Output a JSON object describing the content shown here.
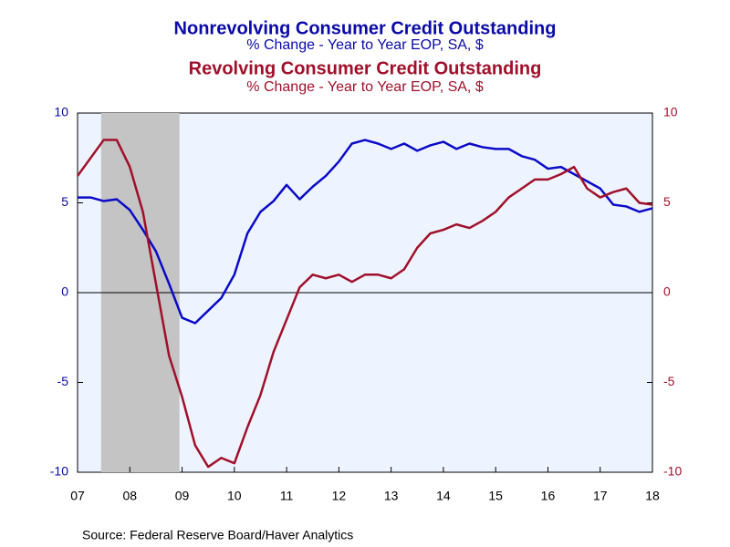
{
  "chart_data": {
    "type": "line",
    "titles": [
      {
        "text": "Nonrevolving Consumer Credit Outstanding",
        "color": "#0a0aa8"
      },
      {
        "text": "% Change - Year to Year     EOP, SA, $",
        "color": "#0a0aa8"
      },
      {
        "text": "Revolving Consumer Credit Outstanding",
        "color": "#a0102a"
      },
      {
        "text": "% Change - Year to Year     EOP, SA, $",
        "color": "#a0102a"
      }
    ],
    "source": "Source:  Federal Reserve Board/Haver Analytics",
    "x": [
      2007.0,
      2007.25,
      2007.5,
      2007.75,
      2008.0,
      2008.25,
      2008.5,
      2008.75,
      2009.0,
      2009.25,
      2009.5,
      2009.75,
      2010.0,
      2010.25,
      2010.5,
      2010.75,
      2011.0,
      2011.25,
      2011.5,
      2011.75,
      2012.0,
      2012.25,
      2012.5,
      2012.75,
      2013.0,
      2013.25,
      2013.5,
      2013.75,
      2014.0,
      2014.25,
      2014.5,
      2014.75,
      2015.0,
      2015.25,
      2015.5,
      2015.75,
      2016.0,
      2016.25,
      2016.5,
      2016.75,
      2017.0,
      2017.25,
      2017.5,
      2017.75,
      2018.0
    ],
    "series": [
      {
        "name": "Nonrevolving Consumer Credit Outstanding",
        "color": "#0a0ac8",
        "axis": "y",
        "values": [
          5.3,
          5.3,
          5.1,
          5.2,
          4.6,
          3.5,
          2.3,
          0.5,
          -1.4,
          -1.7,
          -1.0,
          -0.3,
          1.0,
          3.3,
          4.5,
          5.1,
          6.0,
          5.2,
          5.9,
          6.5,
          7.3,
          8.3,
          8.5,
          8.3,
          8.0,
          8.3,
          7.9,
          8.2,
          8.4,
          8.0,
          8.3,
          8.1,
          8.0,
          8.0,
          7.6,
          7.4,
          6.9,
          7.0,
          6.6,
          6.2,
          5.8,
          4.9,
          4.8,
          4.5,
          4.7
        ]
      },
      {
        "name": "Revolving Consumer Credit Outstanding",
        "color": "#a0102a",
        "axis": "y2",
        "values": [
          6.5,
          7.5,
          8.5,
          8.5,
          7.0,
          4.5,
          0.5,
          -3.5,
          -5.8,
          -8.5,
          -9.7,
          -9.2,
          -9.5,
          -7.5,
          -5.7,
          -3.3,
          -1.5,
          0.3,
          1.0,
          0.8,
          1.0,
          0.6,
          1.0,
          1.0,
          0.8,
          1.3,
          2.5,
          3.3,
          3.5,
          3.8,
          3.6,
          4.0,
          4.5,
          5.3,
          5.8,
          6.3,
          6.3,
          6.6,
          7.0,
          5.8,
          5.3,
          5.6,
          5.8,
          5.0,
          4.9
        ]
      }
    ],
    "recession": [
      2007.45,
      2008.95
    ],
    "xlim": [
      2007,
      2018
    ],
    "xticks": [
      {
        "value": 2007,
        "label": "07"
      },
      {
        "value": 2008,
        "label": "08"
      },
      {
        "value": 2009,
        "label": "09"
      },
      {
        "value": 2010,
        "label": "10"
      },
      {
        "value": 2011,
        "label": "11"
      },
      {
        "value": 2012,
        "label": "12"
      },
      {
        "value": 2013,
        "label": "13"
      },
      {
        "value": 2014,
        "label": "14"
      },
      {
        "value": 2015,
        "label": "15"
      },
      {
        "value": 2016,
        "label": "16"
      },
      {
        "value": 2017,
        "label": "17"
      },
      {
        "value": 2018,
        "label": "18"
      }
    ],
    "ylim": [
      -10,
      10
    ],
    "yticks": [
      -10,
      -5,
      0,
      5,
      10
    ],
    "y2lim": [
      -10,
      10
    ],
    "y2ticks": [
      -10,
      -5,
      0,
      5,
      10
    ]
  }
}
